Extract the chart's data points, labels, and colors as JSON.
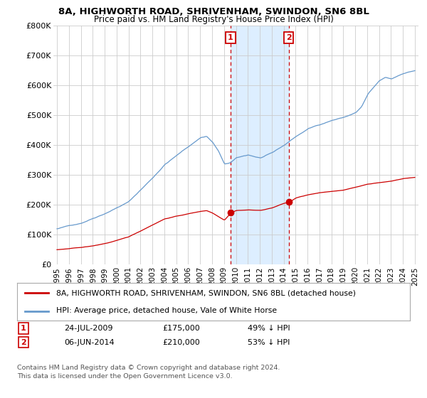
{
  "title": "8A, HIGHWORTH ROAD, SHRIVENHAM, SWINDON, SN6 8BL",
  "subtitle": "Price paid vs. HM Land Registry's House Price Index (HPI)",
  "legend_line1": "8A, HIGHWORTH ROAD, SHRIVENHAM, SWINDON, SN6 8BL (detached house)",
  "legend_line2": "HPI: Average price, detached house, Vale of White Horse",
  "footer": "Contains HM Land Registry data © Crown copyright and database right 2024.\nThis data is licensed under the Open Government Licence v3.0.",
  "marker1_date": "24-JUL-2009",
  "marker1_price": "£175,000",
  "marker1_pct": "49% ↓ HPI",
  "marker1_year": 2009.55,
  "marker1_value": 175000,
  "marker2_date": "06-JUN-2014",
  "marker2_price": "£210,000",
  "marker2_pct": "53% ↓ HPI",
  "marker2_year": 2014.42,
  "marker2_value": 210000,
  "ylim": [
    0,
    800000
  ],
  "yticks": [
    0,
    100000,
    200000,
    300000,
    400000,
    500000,
    600000,
    700000,
    800000
  ],
  "ytick_labels": [
    "£0",
    "£100K",
    "£200K",
    "£300K",
    "£400K",
    "£500K",
    "£600K",
    "£700K",
    "£800K"
  ],
  "xlim_start": 1994.7,
  "xlim_end": 2025.3,
  "red_line_color": "#cc0000",
  "blue_line_color": "#6699cc",
  "shade_color": "#ddeeff",
  "marker_box_color": "#cc0000",
  "background_color": "#ffffff",
  "grid_color": "#cccccc"
}
